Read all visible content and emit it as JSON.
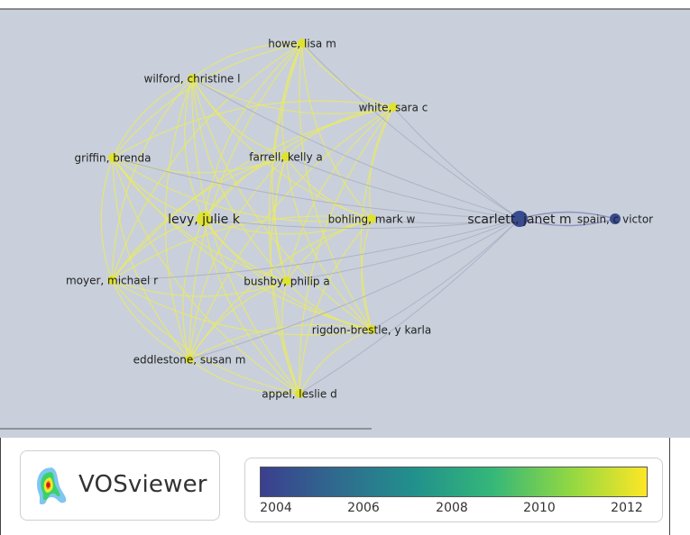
{
  "app": {
    "logo_text": "VOSviewer",
    "logo_icon": "vosviewer-density-icon"
  },
  "colors": {
    "background": "#c9d0db",
    "edge_yellow": "#ecec58",
    "edge_purple": "#8f8fbf",
    "colormap": [
      "#3b3f8f",
      "#2f6b8e",
      "#21918c",
      "#35b779",
      "#90d743",
      "#fde725"
    ]
  },
  "network": {
    "nodes": [
      {
        "id": "howe",
        "label": "howe, lisa m",
        "year": 2012
      },
      {
        "id": "wilford",
        "label": "wilford, christine l",
        "year": 2012
      },
      {
        "id": "white",
        "label": "white, sara c",
        "year": 2012
      },
      {
        "id": "griffin",
        "label": "griffin, brenda",
        "year": 2012
      },
      {
        "id": "farrell",
        "label": "farrell, kelly a",
        "year": 2012
      },
      {
        "id": "levy",
        "label": "levy, julie k",
        "year": 2012
      },
      {
        "id": "bohling",
        "label": "bohling, mark w",
        "year": 2012
      },
      {
        "id": "scarlett",
        "label": "scarlett, janet m",
        "year": 2004
      },
      {
        "id": "spain",
        "label": "spain, c victor",
        "year": 2004
      },
      {
        "id": "moyer",
        "label": "moyer, michael r",
        "year": 2012
      },
      {
        "id": "bushby",
        "label": "bushby, philip a",
        "year": 2012
      },
      {
        "id": "rigdon",
        "label": "rigdon-brestle, y karla",
        "year": 2012
      },
      {
        "id": "eddlestone",
        "label": "eddlestone, susan m",
        "year": 2012
      },
      {
        "id": "appel",
        "label": "appel, leslie d",
        "year": 2012
      }
    ]
  },
  "overlay_legend": {
    "ticks": [
      "2004",
      "2006",
      "2008",
      "2010",
      "2012"
    ]
  }
}
